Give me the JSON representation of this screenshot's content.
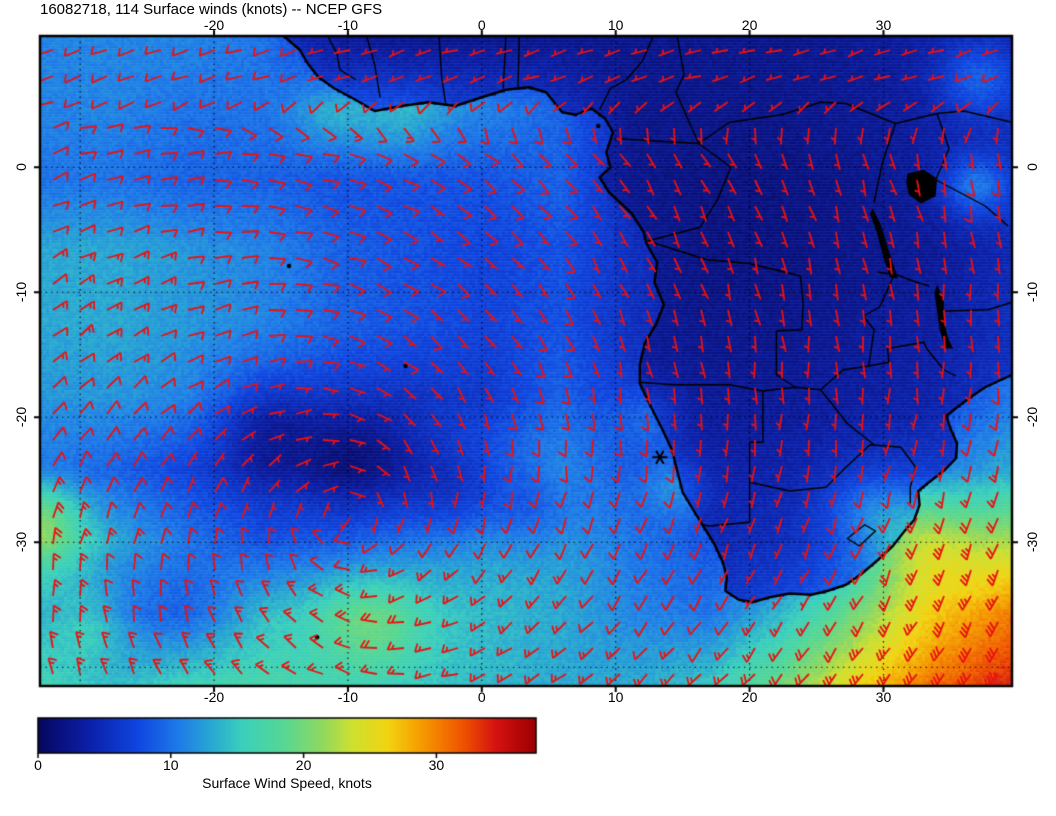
{
  "title": "16082718, 114 Surface winds (knots) -- NCEP GFS",
  "axes": {
    "lon_ticks": [
      {
        "label": "-20",
        "value": -20
      },
      {
        "label": "-10",
        "value": -10
      },
      {
        "label": "0",
        "value": 0
      },
      {
        "label": "10",
        "value": 10
      },
      {
        "label": "20",
        "value": 20
      },
      {
        "label": "30",
        "value": 30
      }
    ],
    "lat_ticks": [
      {
        "label": "0",
        "value": 0
      },
      {
        "label": "-10",
        "value": -10
      },
      {
        "label": "-20",
        "value": -20
      },
      {
        "label": "-30",
        "value": -30
      }
    ]
  },
  "colorbar": {
    "caption": "Surface Wind Speed, knots",
    "min": 0,
    "max": 37.5,
    "ticks": [
      {
        "label": "0",
        "value": 0
      },
      {
        "label": "10",
        "value": 10
      },
      {
        "label": "20",
        "value": 20
      },
      {
        "label": "30",
        "value": 30
      }
    ],
    "stops": [
      [
        0.0,
        "#06065e"
      ],
      [
        0.1,
        "#0b1fa8"
      ],
      [
        0.2,
        "#0f46e0"
      ],
      [
        0.28,
        "#1e7ae8"
      ],
      [
        0.34,
        "#27a3d4"
      ],
      [
        0.41,
        "#3bd0bd"
      ],
      [
        0.49,
        "#55d795"
      ],
      [
        0.57,
        "#8fd860"
      ],
      [
        0.63,
        "#cfe030"
      ],
      [
        0.7,
        "#f2d412"
      ],
      [
        0.77,
        "#f59b00"
      ],
      [
        0.85,
        "#ef5500"
      ],
      [
        0.92,
        "#d41111"
      ],
      [
        1.0,
        "#9b0000"
      ]
    ]
  },
  "chart_data": {
    "type": "heatmap",
    "variable_label": "Surface winds (knots)",
    "source_label": "NCEP GFS",
    "lon_range": [
      -33,
      39.6
    ],
    "lat_range": [
      -41.5,
      10.5
    ],
    "graticule_lons": [
      -30,
      -20,
      -10,
      0,
      10,
      20,
      30
    ],
    "graticule_lats": [
      0,
      -10,
      -20,
      -30,
      -40
    ],
    "grid_lons": [
      -33,
      -27.4,
      -21.8,
      -16.3,
      -10.7,
      -5.2,
      0.4,
      5.9,
      11.5,
      17,
      22.6,
      28.1,
      33.7,
      39.3
    ],
    "grid_lats": [
      10.5,
      4.7,
      -1.1,
      -6.8,
      -12.6,
      -18.4,
      -24.2,
      -29.9,
      -35.7,
      -41.5
    ],
    "speed_knots": [
      [
        11,
        11,
        11,
        10,
        5,
        4,
        4,
        4,
        4,
        4,
        4,
        5,
        6,
        7
      ],
      [
        11,
        11,
        10,
        10,
        11,
        12,
        11,
        9,
        4,
        4,
        4,
        5,
        6,
        8
      ],
      [
        10,
        10,
        9,
        9,
        8,
        8,
        8,
        9,
        4,
        3,
        3,
        4,
        6,
        9
      ],
      [
        13,
        13,
        12,
        11,
        9,
        8,
        7,
        8,
        5,
        3,
        3,
        4,
        5,
        8
      ],
      [
        13,
        13,
        12,
        11,
        9,
        8,
        7,
        8,
        5,
        4,
        4,
        5,
        6,
        9
      ],
      [
        12,
        12,
        11,
        9,
        7,
        6,
        6,
        9,
        6,
        5,
        5,
        6,
        7,
        10
      ],
      [
        10,
        9,
        7,
        5,
        6,
        8,
        10,
        12,
        8,
        6,
        7,
        8,
        10,
        13
      ],
      [
        18,
        13,
        10,
        8,
        9,
        11,
        13,
        13,
        10,
        8,
        9,
        12,
        18,
        22
      ],
      [
        13,
        9,
        9,
        14,
        16,
        15,
        14,
        13,
        11,
        10,
        14,
        20,
        26,
        30
      ],
      [
        16,
        14,
        16,
        17,
        16,
        15,
        14,
        13,
        13,
        15,
        20,
        26,
        31,
        34
      ]
    ],
    "speed_bumps": [
      [
        -16,
        -20.5,
        4,
        -4
      ],
      [
        -9,
        -23.5,
        4.5,
        -5
      ],
      [
        -2,
        -26,
        4,
        -4
      ],
      [
        4,
        -27.5,
        3.5,
        -3
      ],
      [
        12.5,
        -20,
        2.5,
        3
      ],
      [
        14.5,
        -25.5,
        2.5,
        4
      ],
      [
        -11,
        4,
        3,
        2.5
      ],
      [
        -6,
        3.5,
        3,
        2
      ],
      [
        36.8,
        -1.5,
        2.5,
        6
      ],
      [
        37,
        7,
        3,
        5
      ],
      [
        29,
        -27.5,
        3.5,
        4
      ],
      [
        33,
        -30,
        4,
        5
      ],
      [
        -33,
        -28,
        3,
        5
      ],
      [
        -29,
        -36.5,
        3,
        4
      ],
      [
        -8,
        -36.5,
        3.5,
        4
      ]
    ],
    "wind_gyre_center": [
      -10,
      -28
    ],
    "marker": {
      "lon": 13.3,
      "lat": -23.2,
      "symbol": "asterisk"
    },
    "coastline": [
      [
        -14.8,
        10.5
      ],
      [
        -13.6,
        9.4
      ],
      [
        -13.0,
        8.3
      ],
      [
        -12.2,
        7.2
      ],
      [
        -11.0,
        6.3
      ],
      [
        -9.6,
        5.5
      ],
      [
        -8.0,
        4.5
      ],
      [
        -6.0,
        4.9
      ],
      [
        -4.0,
        5.2
      ],
      [
        -2.0,
        4.9
      ],
      [
        0.0,
        5.6
      ],
      [
        1.8,
        6.2
      ],
      [
        3.5,
        6.4
      ],
      [
        4.8,
        6.0
      ],
      [
        6.0,
        4.4
      ],
      [
        7.0,
        4.2
      ],
      [
        8.2,
        4.7
      ],
      [
        9.2,
        3.9
      ],
      [
        9.8,
        2.8
      ],
      [
        9.3,
        1.2
      ],
      [
        9.6,
        0.0
      ],
      [
        8.8,
        -0.8
      ],
      [
        9.5,
        -2.0
      ],
      [
        11.2,
        -3.7
      ],
      [
        12.1,
        -5.2
      ],
      [
        12.3,
        -6.1
      ],
      [
        13.1,
        -7.6
      ],
      [
        12.9,
        -9.2
      ],
      [
        13.6,
        -11.0
      ],
      [
        13.0,
        -12.6
      ],
      [
        12.2,
        -14.0
      ],
      [
        11.8,
        -15.8
      ],
      [
        11.8,
        -17.3
      ],
      [
        12.6,
        -19.1
      ],
      [
        13.5,
        -21.0
      ],
      [
        14.2,
        -22.6
      ],
      [
        14.6,
        -24.3
      ],
      [
        15.0,
        -26.0
      ],
      [
        15.9,
        -27.6
      ],
      [
        16.6,
        -28.8
      ],
      [
        17.4,
        -30.2
      ],
      [
        18.0,
        -31.6
      ],
      [
        18.3,
        -32.8
      ],
      [
        18.2,
        -33.9
      ],
      [
        19.2,
        -34.6
      ],
      [
        20.2,
        -34.8
      ],
      [
        21.5,
        -34.4
      ],
      [
        23.0,
        -34.1
      ],
      [
        24.6,
        -34.2
      ],
      [
        25.8,
        -33.9
      ],
      [
        27.2,
        -33.4
      ],
      [
        28.4,
        -32.5
      ],
      [
        29.6,
        -31.4
      ],
      [
        30.7,
        -30.3
      ],
      [
        31.5,
        -29.2
      ],
      [
        32.3,
        -28.2
      ],
      [
        32.7,
        -27.0
      ],
      [
        32.6,
        -25.9
      ],
      [
        33.4,
        -25.2
      ],
      [
        34.6,
        -24.2
      ],
      [
        35.4,
        -23.3
      ],
      [
        35.5,
        -22.1
      ],
      [
        35.0,
        -20.9
      ],
      [
        34.7,
        -19.9
      ],
      [
        35.5,
        -19.2
      ],
      [
        36.5,
        -18.4
      ],
      [
        37.6,
        -17.6
      ],
      [
        38.6,
        -17.1
      ],
      [
        39.6,
        -16.6
      ]
    ],
    "borders": [
      [
        [
          -11.5,
          10.5
        ],
        [
          -10.8,
          9.0
        ],
        [
          -10.6,
          7.8
        ],
        [
          -9.4,
          7.0
        ]
      ],
      [
        [
          -8.6,
          10.5
        ],
        [
          -8.0,
          8.2
        ],
        [
          -7.6,
          5.6
        ]
      ],
      [
        [
          -3.2,
          10.5
        ],
        [
          -3.0,
          7.2
        ],
        [
          -2.7,
          5.1
        ]
      ],
      [
        [
          1.8,
          10.5
        ],
        [
          1.6,
          6.3
        ]
      ],
      [
        [
          2.8,
          10.5
        ],
        [
          2.7,
          6.4
        ]
      ],
      [
        [
          8.8,
          4.6
        ],
        [
          9.6,
          6.3
        ],
        [
          10.8,
          7.0
        ],
        [
          12.0,
          8.5
        ],
        [
          12.8,
          10.5
        ]
      ],
      [
        [
          14.6,
          10.5
        ],
        [
          15.1,
          7.4
        ],
        [
          14.5,
          6.0
        ],
        [
          16.2,
          1.9
        ]
      ],
      [
        [
          9.9,
          2.3
        ],
        [
          16.2,
          1.9
        ]
      ],
      [
        [
          16.2,
          1.9
        ],
        [
          18.6,
          0.0
        ],
        [
          17.6,
          -2.6
        ],
        [
          16.3,
          -4.8
        ],
        [
          12.4,
          -5.9
        ]
      ],
      [
        [
          12.4,
          -5.9
        ],
        [
          16.8,
          -7.4
        ],
        [
          20.0,
          -7.7
        ],
        [
          23.8,
          -8.7
        ],
        [
          24.0,
          -11.0
        ]
      ],
      [
        [
          24.0,
          -11.0
        ],
        [
          23.9,
          -13.0
        ],
        [
          22.0,
          -13.1
        ],
        [
          22.0,
          -16.6
        ],
        [
          23.4,
          -17.6
        ]
      ],
      [
        [
          11.8,
          -17.2
        ],
        [
          14.3,
          -17.4
        ],
        [
          18.5,
          -17.4
        ],
        [
          21.0,
          -17.9
        ],
        [
          23.4,
          -17.6
        ],
        [
          25.3,
          -17.8
        ]
      ],
      [
        [
          21.0,
          -17.9
        ],
        [
          21.0,
          -22.0
        ],
        [
          20.0,
          -22.0
        ],
        [
          20.0,
          -28.4
        ],
        [
          17.0,
          -28.7
        ],
        [
          16.5,
          -28.6
        ]
      ],
      [
        [
          20.0,
          -25.2
        ],
        [
          23.0,
          -25.9
        ],
        [
          25.7,
          -25.6
        ],
        [
          27.2,
          -24.0
        ],
        [
          29.0,
          -22.2
        ],
        [
          31.3,
          -22.4
        ]
      ],
      [
        [
          25.3,
          -17.8
        ],
        [
          26.2,
          -19.0
        ],
        [
          27.3,
          -20.5
        ],
        [
          29.3,
          -22.2
        ]
      ],
      [
        [
          25.3,
          -17.8
        ],
        [
          27.0,
          -16.2
        ],
        [
          28.9,
          -15.9
        ],
        [
          30.4,
          -15.6
        ]
      ],
      [
        [
          31.3,
          -22.4
        ],
        [
          32.4,
          -24.0
        ],
        [
          32.0,
          -25.6
        ],
        [
          32.0,
          -26.9
        ]
      ],
      [
        [
          28.2,
          -30.3
        ],
        [
          29.4,
          -29.1
        ],
        [
          28.6,
          -28.6
        ],
        [
          27.3,
          -29.7
        ],
        [
          28.2,
          -30.3
        ]
      ],
      [
        [
          30.4,
          -15.6
        ],
        [
          30.3,
          -14.5
        ],
        [
          33.0,
          -14.0
        ],
        [
          33.3,
          -14.6
        ],
        [
          34.5,
          -16.2
        ],
        [
          35.4,
          -16.7
        ]
      ],
      [
        [
          34.6,
          -11.5
        ],
        [
          37.8,
          -11.4
        ],
        [
          39.6,
          -10.8
        ]
      ],
      [
        [
          29.6,
          -8.4
        ],
        [
          31.0,
          -8.6
        ],
        [
          32.2,
          -9.1
        ],
        [
          33.4,
          -9.5
        ]
      ],
      [
        [
          28.9,
          -15.9
        ],
        [
          29.3,
          -13.0
        ],
        [
          28.5,
          -11.9
        ],
        [
          29.7,
          -11.2
        ],
        [
          30.8,
          -8.6
        ]
      ],
      [
        [
          30.9,
          3.5
        ],
        [
          29.9,
          0.3
        ],
        [
          29.3,
          -2.8
        ]
      ],
      [
        [
          16.2,
          1.9
        ],
        [
          18.5,
          3.6
        ],
        [
          22.4,
          4.2
        ],
        [
          25.3,
          5.2
        ],
        [
          27.2,
          5.1
        ],
        [
          30.9,
          3.5
        ]
      ],
      [
        [
          30.9,
          3.5
        ],
        [
          34.0,
          4.3
        ],
        [
          36.0,
          4.5
        ],
        [
          39.6,
          3.6
        ]
      ],
      [
        [
          34.0,
          4.3
        ],
        [
          34.9,
          1.5
        ],
        [
          33.9,
          -1.0
        ]
      ],
      [
        [
          33.9,
          -1.0
        ],
        [
          37.6,
          -3.1
        ],
        [
          39.3,
          -4.7
        ]
      ]
    ],
    "lakes": [
      [
        [
          31.8,
          -0.5
        ],
        [
          33.0,
          -0.2
        ],
        [
          34.0,
          -0.9
        ],
        [
          33.9,
          -2.3
        ],
        [
          32.8,
          -2.9
        ],
        [
          31.9,
          -2.2
        ],
        [
          31.7,
          -1.2
        ]
      ],
      [
        [
          29.2,
          -3.3
        ],
        [
          29.8,
          -4.6
        ],
        [
          30.2,
          -6.0
        ],
        [
          30.7,
          -7.7
        ],
        [
          31.1,
          -8.9
        ],
        [
          30.5,
          -8.8
        ],
        [
          30.0,
          -7.2
        ],
        [
          29.5,
          -5.2
        ],
        [
          29.0,
          -3.7
        ]
      ],
      [
        [
          34.0,
          -9.4
        ],
        [
          34.5,
          -10.6
        ],
        [
          34.5,
          -12.1
        ],
        [
          34.8,
          -13.6
        ],
        [
          35.2,
          -14.5
        ],
        [
          34.6,
          -14.5
        ],
        [
          34.2,
          -13.0
        ],
        [
          34.0,
          -11.5
        ],
        [
          33.8,
          -10.0
        ]
      ]
    ],
    "islands": [
      [
        -14.4,
        -7.9
      ],
      [
        -5.7,
        -15.9
      ],
      [
        -12.3,
        -37.6
      ],
      [
        8.7,
        3.3
      ]
    ]
  }
}
